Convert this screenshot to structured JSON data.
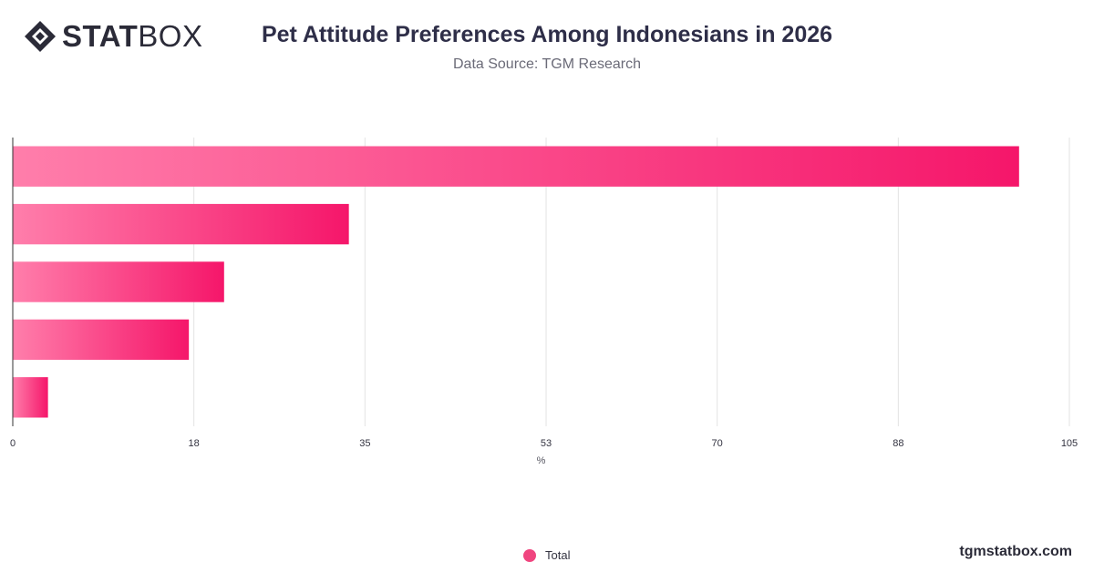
{
  "brand": {
    "stat": "STAT",
    "box": "BOX"
  },
  "header": {
    "title": "Pet Attitude Preferences Among Indonesians in 2026",
    "subtitle": "Data Source: TGM Research"
  },
  "colors": {
    "bar_start": "#ff7eab",
    "bar_end": "#f5166a",
    "grid": "#e3e3e3",
    "axis": "#333333"
  },
  "chart_data": {
    "type": "bar",
    "orientation": "horizontal",
    "categories": [
      "",
      "",
      "",
      "",
      ""
    ],
    "series": [
      {
        "name": "Total",
        "values": [
          100,
          33.4,
          21,
          17.5,
          3.5
        ]
      }
    ],
    "xlabel": "%",
    "xlim": [
      0,
      105
    ],
    "xticks": [
      0,
      18,
      35,
      53,
      70,
      88,
      105
    ],
    "grid": true,
    "legend": "bottom-center"
  },
  "footer": {
    "site": "tgmstatbox.com"
  }
}
